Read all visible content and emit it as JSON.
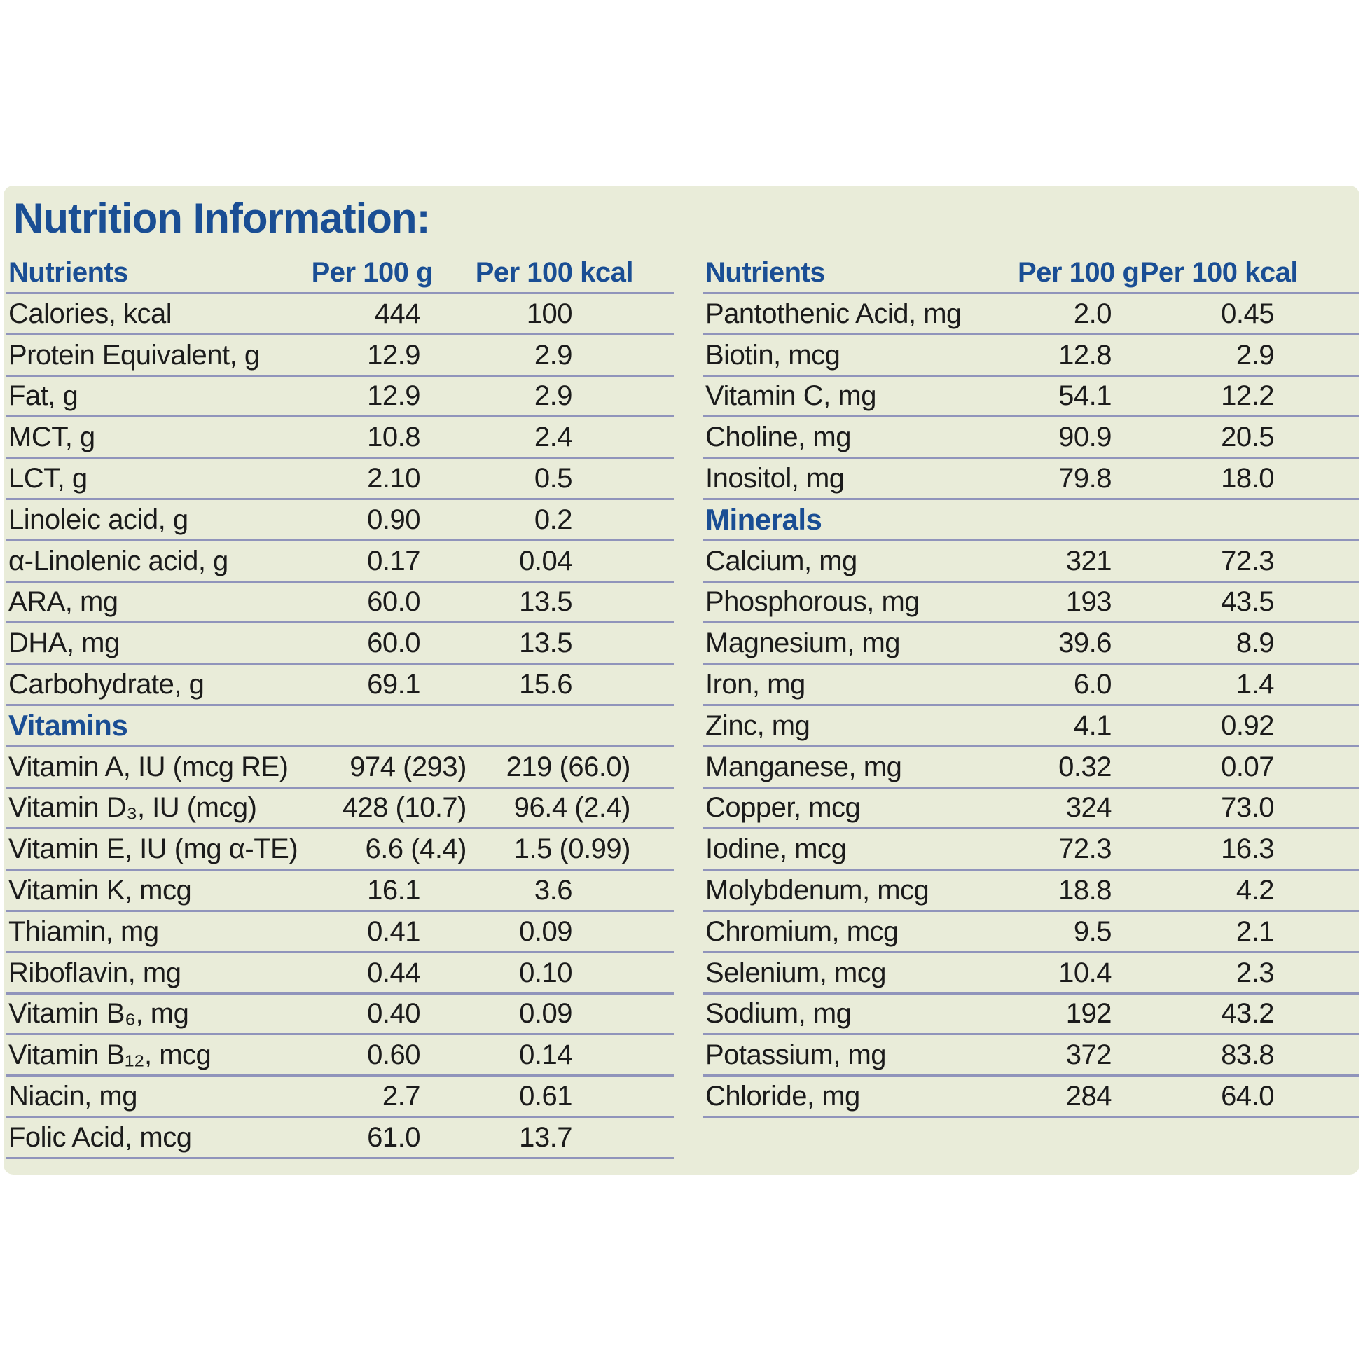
{
  "title": "Nutrition Information:",
  "colors": {
    "panel_background": "#e9ecd9",
    "accent_blue": "#1a4e94",
    "row_line": "#9094bb",
    "text": "#1b1b1b"
  },
  "left_table": {
    "headers": {
      "nutrients": "Nutrients",
      "per_100g": "Per 100 g",
      "per_100kcal": "Per 100 kcal"
    },
    "rows": [
      {
        "label": "Calories, kcal",
        "indent": 0,
        "g": "444",
        "kcal": "100"
      },
      {
        "label": "Protein Equivalent, g",
        "indent": 0,
        "g": "12.9",
        "kcal": "2.9"
      },
      {
        "label": "Fat, g",
        "indent": 0,
        "g": "12.9",
        "kcal": "2.9"
      },
      {
        "label": "MCT, g",
        "indent": 1,
        "g": "10.8",
        "kcal": "2.4"
      },
      {
        "label": "LCT, g",
        "indent": 1,
        "g": "2.10",
        "kcal": "0.5"
      },
      {
        "label": "Linoleic acid, g",
        "indent": 2,
        "g": "0.90",
        "kcal": "0.2"
      },
      {
        "label": "α-Linolenic acid, g",
        "indent": 2,
        "g": "0.17",
        "kcal": "0.04"
      },
      {
        "label": "ARA, mg",
        "indent": 2,
        "g": "60.0",
        "kcal": "13.5"
      },
      {
        "label": "DHA, mg",
        "indent": 2,
        "g": "60.0",
        "kcal": "13.5"
      },
      {
        "label": "Carbohydrate, g",
        "indent": 0,
        "g": "69.1",
        "kcal": "15.6"
      },
      {
        "section": "Vitamins"
      },
      {
        "label": "Vitamin A, IU (mcg RE)",
        "indent": 0,
        "g": "974 (293)",
        "kcal": "219 (66.0)"
      },
      {
        "label": "Vitamin D₃, IU (mcg)",
        "indent": 0,
        "g": "428 (10.7)",
        "kcal": "96.4 (2.4)"
      },
      {
        "label": "Vitamin E, IU (mg α-TE)",
        "indent": 0,
        "g": "6.6 (4.4)",
        "kcal": "1.5 (0.99)"
      },
      {
        "label": "Vitamin K, mcg",
        "indent": 0,
        "g": "16.1",
        "kcal": "3.6"
      },
      {
        "label": "Thiamin, mg",
        "indent": 0,
        "g": "0.41",
        "kcal": "0.09"
      },
      {
        "label": "Riboflavin, mg",
        "indent": 0,
        "g": "0.44",
        "kcal": "0.10"
      },
      {
        "label": "Vitamin B₆, mg",
        "indent": 0,
        "g": "0.40",
        "kcal": "0.09"
      },
      {
        "label": "Vitamin B₁₂, mcg",
        "indent": 0,
        "g": "0.60",
        "kcal": "0.14"
      },
      {
        "label": "Niacin, mg",
        "indent": 0,
        "g": "2.7",
        "kcal": "0.61"
      },
      {
        "label": "Folic Acid, mcg",
        "indent": 0,
        "g": "61.0",
        "kcal": "13.7"
      }
    ]
  },
  "right_table": {
    "headers": {
      "nutrients": "Nutrients",
      "per_100g": "Per 100 g",
      "per_100kcal": "Per 100 kcal"
    },
    "rows": [
      {
        "label": "Pantothenic Acid, mg",
        "indent": 0,
        "g": "2.0",
        "kcal": "0.45"
      },
      {
        "label": "Biotin, mcg",
        "indent": 0,
        "g": "12.8",
        "kcal": "2.9"
      },
      {
        "label": "Vitamin C, mg",
        "indent": 0,
        "g": "54.1",
        "kcal": "12.2"
      },
      {
        "label": "Choline, mg",
        "indent": 0,
        "g": "90.9",
        "kcal": "20.5"
      },
      {
        "label": "Inositol, mg",
        "indent": 0,
        "g": "79.8",
        "kcal": "18.0"
      },
      {
        "section": "Minerals"
      },
      {
        "label": "Calcium, mg",
        "indent": 0,
        "g": "321",
        "kcal": "72.3"
      },
      {
        "label": "Phosphorous, mg",
        "indent": 0,
        "g": "193",
        "kcal": "43.5"
      },
      {
        "label": "Magnesium, mg",
        "indent": 0,
        "g": "39.6",
        "kcal": "8.9"
      },
      {
        "label": "Iron, mg",
        "indent": 0,
        "g": "6.0",
        "kcal": "1.4"
      },
      {
        "label": "Zinc, mg",
        "indent": 0,
        "g": "4.1",
        "kcal": "0.92"
      },
      {
        "label": "Manganese, mg",
        "indent": 0,
        "g": "0.32",
        "kcal": "0.07"
      },
      {
        "label": "Copper, mcg",
        "indent": 0,
        "g": "324",
        "kcal": "73.0"
      },
      {
        "label": "Iodine, mcg",
        "indent": 0,
        "g": "72.3",
        "kcal": "16.3"
      },
      {
        "label": "Molybdenum, mcg",
        "indent": 0,
        "g": "18.8",
        "kcal": "4.2"
      },
      {
        "label": "Chromium, mcg",
        "indent": 0,
        "g": "9.5",
        "kcal": "2.1"
      },
      {
        "label": "Selenium, mcg",
        "indent": 0,
        "g": "10.4",
        "kcal": "2.3"
      },
      {
        "label": "Sodium, mg",
        "indent": 0,
        "g": "192",
        "kcal": "43.2"
      },
      {
        "label": "Potassium, mg",
        "indent": 0,
        "g": "372",
        "kcal": "83.8"
      },
      {
        "label": "Chloride, mg",
        "indent": 0,
        "g": "284",
        "kcal": "64.0"
      }
    ]
  }
}
